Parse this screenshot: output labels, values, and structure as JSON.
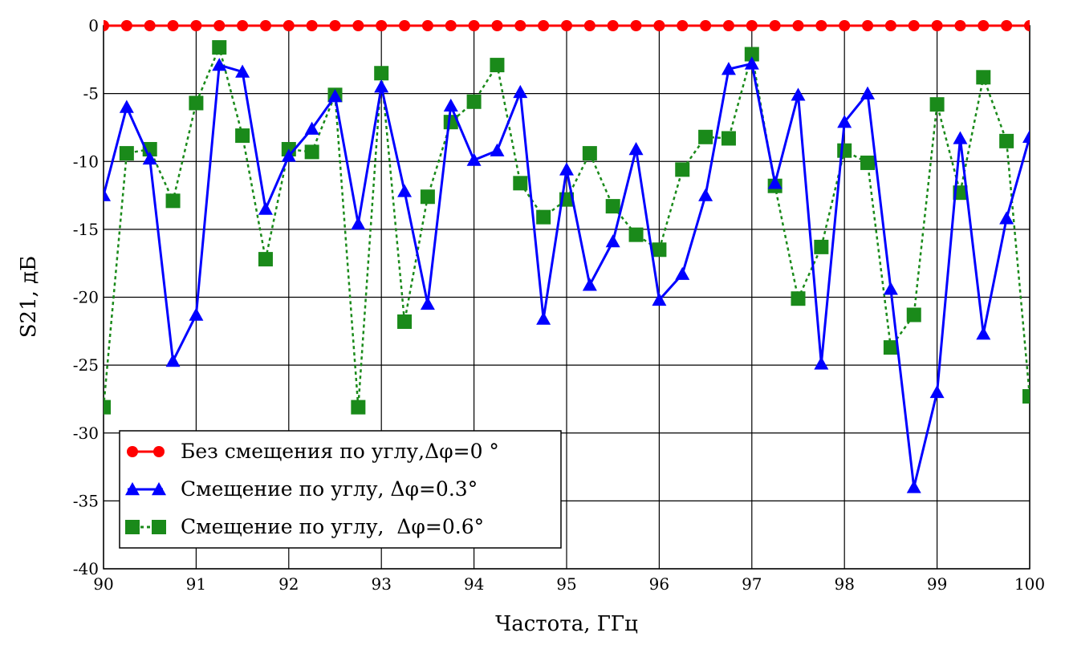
{
  "chart_data": {
    "type": "line",
    "xlabel": "Частота, ГГц",
    "ylabel": "S21, дБ",
    "xlim": [
      90,
      100
    ],
    "ylim": [
      -40,
      0
    ],
    "x_ticks": [
      90,
      91,
      92,
      93,
      94,
      95,
      96,
      97,
      98,
      99,
      100
    ],
    "y_ticks": [
      0,
      -5,
      -10,
      -15,
      -20,
      -25,
      -30,
      -35,
      -40
    ],
    "grid": true,
    "legend_position": "bottom-left",
    "series": [
      {
        "name": "Без смещения по углу,Δφ=0 °",
        "color": "#ff0000",
        "marker": "circle",
        "line": "solid",
        "x": [
          90,
          90.25,
          90.5,
          90.75,
          91,
          91.25,
          91.5,
          91.75,
          92,
          92.25,
          92.5,
          92.75,
          93,
          93.25,
          93.5,
          93.75,
          94,
          94.25,
          94.5,
          94.75,
          95,
          95.25,
          95.5,
          95.75,
          96,
          96.25,
          96.5,
          96.75,
          97,
          97.25,
          97.5,
          97.75,
          98,
          98.25,
          98.5,
          98.75,
          99,
          99.25,
          99.5,
          99.75,
          100
        ],
        "y": [
          0,
          0,
          0,
          0,
          0,
          0,
          0,
          0,
          0,
          0,
          0,
          0,
          0,
          0,
          0,
          0,
          0,
          0,
          0,
          0,
          0,
          0,
          0,
          0,
          0,
          0,
          0,
          0,
          0,
          0,
          0,
          0,
          0,
          0,
          0,
          0,
          0,
          0,
          0,
          0,
          0
        ]
      },
      {
        "name": "Смещение по углу, Δφ=0.3°",
        "color": "#0000ff",
        "marker": "triangle",
        "line": "solid",
        "x": [
          90,
          90.25,
          90.5,
          90.75,
          91,
          91.25,
          91.5,
          91.75,
          92,
          92.25,
          92.5,
          92.75,
          93,
          93.25,
          93.5,
          93.75,
          94,
          94.25,
          94.5,
          94.75,
          95,
          95.25,
          95.5,
          95.75,
          96,
          96.25,
          96.5,
          96.75,
          97,
          97.25,
          97.5,
          97.75,
          98,
          98.25,
          98.5,
          98.75,
          99,
          99.25,
          99.5,
          99.75,
          100
        ],
        "y": [
          -12.5,
          -6,
          -9.8,
          -24.7,
          -21.3,
          -2.9,
          -3.4,
          -13.5,
          -9.6,
          -7.6,
          -5.2,
          -14.6,
          -4.5,
          -12.2,
          -20.5,
          -5.9,
          -9.9,
          -9.2,
          -4.9,
          -21.6,
          -10.6,
          -19.1,
          -15.9,
          -9.1,
          -20.2,
          -18.3,
          -12.5,
          -3.2,
          -2.8,
          -11.6,
          -5.1,
          -24.9,
          -7.1,
          -5,
          -19.4,
          -34,
          -27,
          -8.3,
          -22.7,
          -14.2,
          -8.2
        ]
      },
      {
        "name": "Смещение по углу,  Δφ=0.6°",
        "color": "#1a8a1a",
        "marker": "square",
        "line": "dotted",
        "x": [
          90,
          90.25,
          90.5,
          90.75,
          91,
          91.25,
          91.5,
          91.75,
          92,
          92.25,
          92.5,
          92.75,
          93,
          93.25,
          93.5,
          93.75,
          94,
          94.25,
          94.5,
          94.75,
          95,
          95.25,
          95.5,
          95.75,
          96,
          96.25,
          96.5,
          96.75,
          97,
          97.25,
          97.5,
          97.75,
          98,
          98.25,
          98.5,
          98.75,
          99,
          99.25,
          99.5,
          99.75,
          100
        ],
        "y": [
          -28.1,
          -9.4,
          -9.1,
          -12.9,
          -5.7,
          -1.6,
          -8.1,
          -17.2,
          -9.1,
          -9.3,
          -5.1,
          -28.1,
          -3.5,
          -21.8,
          -12.6,
          -7.1,
          -5.6,
          -2.9,
          -11.6,
          -14.1,
          -12.8,
          -9.4,
          -13.3,
          -15.4,
          -16.5,
          -10.6,
          -8.2,
          -8.3,
          -2.1,
          -11.8,
          -20.1,
          -16.3,
          -9.2,
          -10.1,
          -23.7,
          -21.3,
          -5.8,
          -12.3,
          -3.8,
          -8.5,
          -27.3
        ]
      }
    ]
  }
}
